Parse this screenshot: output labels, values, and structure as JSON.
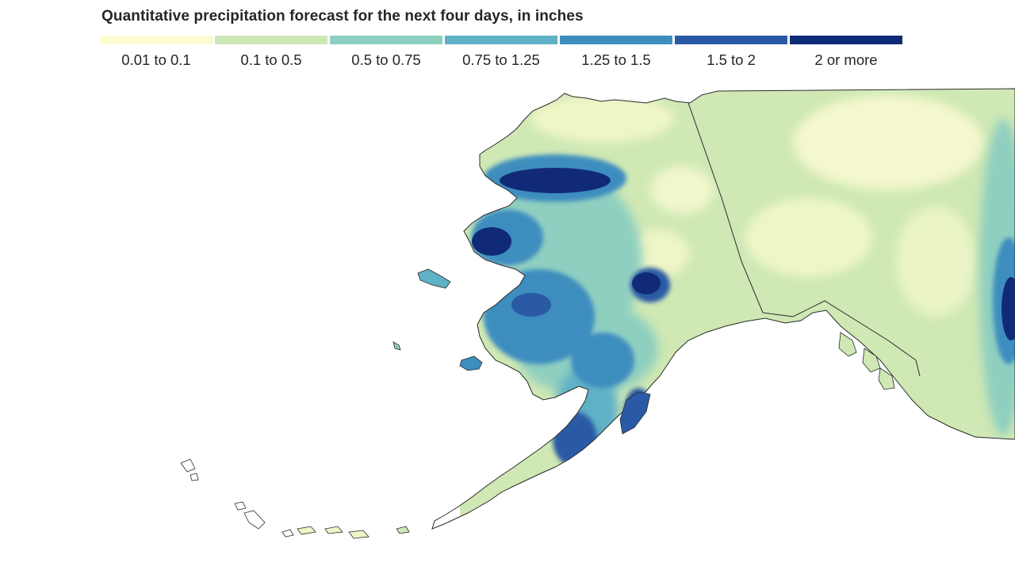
{
  "map": {
    "title": "Quantitative precipitation forecast for the next four days, in inches",
    "legend": [
      {
        "label": "0.01 to 0.1",
        "color": "#fbfcd2"
      },
      {
        "label": "0.1 to 0.5",
        "color": "#cce8b5"
      },
      {
        "label": "0.5 to 0.75",
        "color": "#8fcfc0"
      },
      {
        "label": "0.75 to 1.25",
        "color": "#5fb1c6"
      },
      {
        "label": "1.25 to 1.5",
        "color": "#3e8dbf"
      },
      {
        "label": "1.5 to 2",
        "color": "#2a5aa5"
      },
      {
        "label": "2 or more",
        "color": "#112a78"
      }
    ],
    "region": "Alaska",
    "border_color": "#2a2a2a"
  }
}
